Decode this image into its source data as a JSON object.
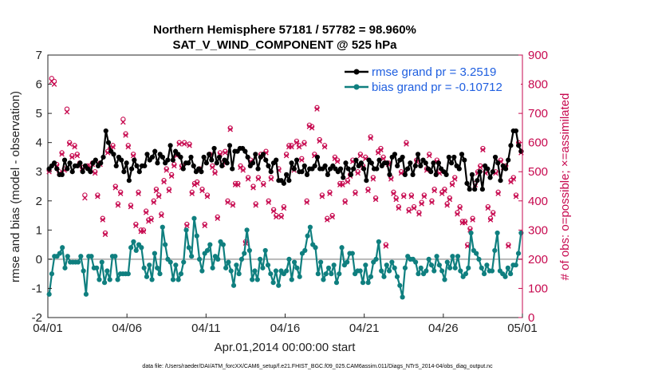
{
  "chart_data": {
    "type": "line",
    "title": "Northern Hemisphere 57181 / 57782 = 98.960%",
    "subtitle": "SAT_V_WIND_COMPONENT @ 525 hPa",
    "xlabel": "Apr.01,2014 00:00:00 start",
    "ylabel_left": "rmse and bias (model - observation)",
    "ylabel_right": "# of obs: o=possible; ×=assimilated",
    "ylim_left": [
      -2,
      7
    ],
    "ylim_right": [
      0,
      900
    ],
    "yticks_left": [
      "-2",
      "-1",
      "0",
      "1",
      "2",
      "3",
      "4",
      "5",
      "6",
      "7"
    ],
    "yticks_right": [
      "0",
      "100",
      "200",
      "300",
      "400",
      "500",
      "600",
      "700",
      "800",
      "900"
    ],
    "xlim": [
      0,
      30
    ],
    "xticks": [
      {
        "pos": 0,
        "label": "04/01"
      },
      {
        "pos": 5,
        "label": "04/06"
      },
      {
        "pos": 10,
        "label": "04/11"
      },
      {
        "pos": 15,
        "label": "04/16"
      },
      {
        "pos": 20,
        "label": "04/21"
      },
      {
        "pos": 25,
        "label": "04/26"
      },
      {
        "pos": 30,
        "label": "05/01"
      }
    ],
    "footnote": "data file: /Users/raeder/DAI/ATM_forcXX/CAM6_setup/f.e21.FHIST_BGC.f09_025.CAM6assim.011/Diags_NTrS_2014-04/obs_diag_output.nc",
    "series": [
      {
        "name": "rmse grand pr = 3.2519",
        "color": "#000000",
        "values": [
          3.1,
          3.2,
          3.3,
          3.1,
          2.9,
          2.9,
          3.4,
          3.1,
          3.3,
          3.0,
          3.2,
          3.2,
          3.3,
          3.0,
          3.2,
          3.1,
          3.0,
          3.3,
          3.4,
          3.2,
          3.3,
          3.5,
          4.4,
          4.0,
          3.7,
          3.6,
          3.2,
          3.5,
          3.4,
          3.0,
          3.3,
          2.7,
          3.1,
          3.4,
          3.2,
          3.0,
          3.2,
          3.2,
          3.6,
          3.4,
          3.5,
          3.7,
          3.3,
          3.6,
          3.5,
          3.3,
          3.4,
          3.9,
          3.4,
          3.7,
          3.6,
          3.5,
          3.1,
          3.3,
          3.3,
          3.5,
          3.2,
          3.0,
          3.1,
          3.0,
          3.5,
          3.3,
          3.6,
          3.4,
          3.8,
          3.3,
          3.5,
          3.2,
          3.4,
          3.3,
          3.9,
          3.1,
          3.7,
          3.7,
          3.8,
          3.8,
          3.7,
          3.5,
          3.2,
          3.3,
          3.6,
          3.1,
          3.5,
          3.6,
          3.4,
          3.2,
          3.0,
          3.3,
          3.4,
          2.7,
          2.7,
          2.6,
          2.9,
          2.7,
          3.3,
          3.1,
          3.4,
          3.0,
          3.0,
          3.2,
          2.9,
          3.1,
          3.1,
          3.2,
          3.5,
          3.1,
          3.1,
          3.2,
          2.9,
          3.1,
          3.2,
          3.1,
          3.0,
          3.1,
          2.8,
          3.3,
          3.1,
          2.9,
          3.1,
          3.4,
          3.2,
          3.3,
          3.1,
          2.7,
          3.4,
          3.3,
          3.1,
          3.1,
          3.4,
          3.2,
          3.3,
          3.3,
          2.9,
          3.5,
          3.6,
          3.2,
          3.4,
          3.5,
          2.9,
          3.1,
          3.3,
          2.9,
          3.2,
          3.6,
          3.2,
          3.4,
          3.3,
          3.1,
          3.0,
          3.3,
          2.9,
          3.3,
          3.1,
          3.0,
          2.9,
          3.5,
          3.3,
          3.5,
          3.2,
          3.1,
          3.6,
          3.4,
          2.6,
          2.4,
          2.9,
          2.4,
          2.7,
          3.0,
          2.4,
          3.2,
          3.1,
          2.8,
          3.0,
          3.5,
          3.3,
          2.7,
          3.2,
          3.1,
          3.4,
          3.9,
          4.4,
          4.4,
          3.9,
          3.7
        ]
      },
      {
        "name": "bias grand pr = -0.10712",
        "color": "#0f7f7f",
        "values": [
          -1.2,
          -0.5,
          0.1,
          0.1,
          0.2,
          0.4,
          -0.3,
          0.1,
          -0.1,
          -0.1,
          -0.1,
          -0.1,
          0.1,
          -0.4,
          -1.2,
          0.1,
          0.1,
          -0.3,
          -0.3,
          -0.7,
          -0.1,
          -0.8,
          -0.4,
          -0.7,
          0.1,
          0.1,
          -0.7,
          -0.5,
          -0.5,
          -0.5,
          -0.5,
          0.4,
          0.6,
          0.3,
          0.5,
          0.4,
          -0.3,
          -0.6,
          -0.2,
          -0.7,
          0.2,
          -0.3,
          -0.5,
          1.1,
          0.5,
          0.0,
          -0.1,
          -0.7,
          -0.2,
          -0.7,
          -0.5,
          -0.1,
          1.0,
          0.4,
          0.1,
          1.4,
          0.8,
          0.0,
          -0.4,
          0.2,
          0.3,
          0.5,
          -0.3,
          0.1,
          0.0,
          0.6,
          0.5,
          -0.3,
          -0.1,
          -0.4,
          -0.9,
          -0.2,
          -0.5,
          0.0,
          0.2,
          1.0,
          0.3,
          -0.7,
          -0.4,
          -0.7,
          0.0,
          -0.3,
          0.3,
          -0.2,
          -0.5,
          -0.8,
          -0.4,
          -0.9,
          -0.4,
          -0.5,
          -0.4,
          0.0,
          -0.7,
          -0.1,
          -0.3,
          -0.6,
          0.2,
          0.3,
          0.8,
          1.1,
          0.5,
          0.4,
          -0.5,
          -0.1,
          -0.7,
          -0.5,
          -0.3,
          -0.5,
          -0.2,
          -0.8,
          -0.5,
          0.4,
          -0.2,
          -0.1,
          0.2,
          0.2,
          -0.5,
          -0.4,
          -0.4,
          -0.8,
          -0.2,
          -0.8,
          -0.6,
          -0.1,
          0.0,
          0.6,
          -0.4,
          -0.6,
          -0.2,
          -0.4,
          -0.1,
          -0.3,
          -0.6,
          -0.9,
          -1.3,
          -0.3,
          0.1,
          0.0,
          0.0,
          -0.1,
          -0.5,
          -0.3,
          -0.5,
          -0.4,
          0.0,
          -0.2,
          -0.4,
          0.1,
          -0.2,
          -0.4,
          -0.7,
          -0.1,
          -0.3,
          0.1,
          -0.3,
          0.1,
          -0.4,
          -0.6,
          -0.5,
          -0.3,
          0.9,
          0.3,
          0.2,
          0.0,
          -0.3,
          -0.5,
          -0.2,
          -0.4,
          -0.4,
          0.3,
          0.9,
          -0.4,
          -0.5,
          -0.6,
          -0.3,
          -0.5,
          -0.2,
          -0.2,
          0.2,
          0.9
        ]
      }
    ],
    "obs_series": {
      "color": "#c7094f",
      "possible_marker": "o",
      "assimilated_marker": "×",
      "possible": [
        505,
        820,
        810,
        525,
        500,
        565,
        510,
        715,
        600,
        555,
        590,
        560,
        530,
        515,
        420,
        520,
        520,
        530,
        500,
        420,
        530,
        340,
        290,
        570,
        580,
        590,
        450,
        390,
        430,
        680,
        630,
        590,
        385,
        560,
        320,
        430,
        300,
        300,
        365,
        335,
        340,
        400,
        440,
        420,
        355,
        470,
        510,
        440,
        490,
        525,
        560,
        600,
        520,
        600,
        320,
        595,
        430,
        460,
        465,
        510,
        440,
        320,
        420,
        560,
        520,
        500,
        345,
        565,
        530,
        570,
        400,
        650,
        390,
        460,
        460,
        520,
        510,
        260,
        480,
        540,
        450,
        390,
        480,
        560,
        460,
        570,
        400,
        480,
        370,
        350,
        510,
        350,
        380,
        560,
        590,
        590,
        510,
        605,
        590,
        545,
        600,
        400,
        660,
        655,
        560,
        720,
        610,
        420,
        590,
        340,
        430,
        350,
        550,
        540,
        460,
        460,
        400,
        470,
        490,
        540,
        430,
        500,
        560,
        520,
        550,
        440,
        620,
        480,
        410,
        570,
        580,
        550,
        250,
        530,
        480,
        430,
        410,
        380,
        500,
        420,
        600,
        370,
        420,
        380,
        540,
        360,
        395,
        420,
        510,
        560,
        400,
        440,
        540,
        500,
        430,
        440,
        390,
        410,
        460,
        480,
        360,
        380,
        330,
        330,
        250,
        305,
        340,
        460,
        500,
        520,
        580,
        500,
        380,
        340,
        360,
        500,
        430,
        540,
        520,
        520,
        250,
        470,
        480,
        420,
        600,
        570
      ],
      "assimilated": [
        500,
        810,
        800,
        520,
        495,
        560,
        505,
        705,
        595,
        550,
        585,
        555,
        525,
        510,
        410,
        515,
        515,
        525,
        495,
        415,
        525,
        335,
        285,
        565,
        575,
        585,
        445,
        385,
        425,
        670,
        625,
        585,
        380,
        555,
        315,
        425,
        295,
        295,
        360,
        330,
        335,
        395,
        435,
        415,
        350,
        465,
        505,
        435,
        485,
        520,
        555,
        595,
        515,
        595,
        315,
        590,
        425,
        455,
        460,
        505,
        435,
        315,
        415,
        555,
        515,
        495,
        340,
        560,
        525,
        565,
        395,
        645,
        385,
        455,
        455,
        515,
        505,
        255,
        475,
        535,
        445,
        385,
        475,
        555,
        455,
        565,
        395,
        475,
        365,
        345,
        505,
        345,
        375,
        555,
        585,
        585,
        505,
        600,
        585,
        540,
        595,
        395,
        655,
        650,
        555,
        715,
        605,
        415,
        585,
        335,
        425,
        345,
        545,
        535,
        455,
        455,
        395,
        465,
        485,
        535,
        425,
        495,
        555,
        515,
        545,
        435,
        615,
        475,
        405,
        565,
        575,
        545,
        245,
        525,
        475,
        425,
        405,
        375,
        495,
        415,
        595,
        365,
        415,
        375,
        535,
        355,
        390,
        415,
        505,
        555,
        395,
        435,
        535,
        495,
        425,
        435,
        385,
        405,
        455,
        475,
        355,
        375,
        325,
        325,
        245,
        300,
        335,
        455,
        495,
        515,
        575,
        495,
        375,
        335,
        355,
        495,
        425,
        535,
        515,
        515,
        245,
        465,
        475,
        415,
        595,
        565
      ]
    }
  }
}
